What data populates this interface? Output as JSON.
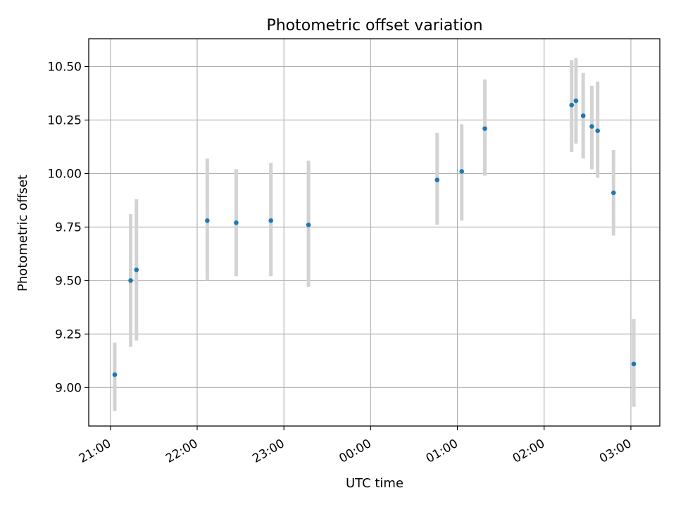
{
  "chart_data": {
    "type": "scatter",
    "title": "Photometric offset variation",
    "xlabel": "UTC time",
    "ylabel": "Photometric offset",
    "x_is_time": true,
    "x_start": "21:00",
    "xlim": [
      "20:45",
      "03:20"
    ],
    "ylim": [
      8.82,
      10.63
    ],
    "xticks": [
      "21:00",
      "22:00",
      "23:00",
      "00:00",
      "01:00",
      "02:00",
      "03:00"
    ],
    "yticks": [
      "9.00",
      "9.25",
      "9.50",
      "9.75",
      "10.00",
      "10.25",
      "10.50"
    ],
    "grid": true,
    "series": [
      {
        "marker_color": "#1f77b4",
        "errorbar_color": "#d3d3d3",
        "points": [
          {
            "x": "21:03",
            "y": 9.06,
            "low": 8.89,
            "high": 9.21
          },
          {
            "x": "21:14",
            "y": 9.5,
            "low": 9.19,
            "high": 9.81
          },
          {
            "x": "21:18",
            "y": 9.55,
            "low": 9.22,
            "high": 9.88
          },
          {
            "x": "22:07",
            "y": 9.78,
            "low": 9.5,
            "high": 10.07
          },
          {
            "x": "22:27",
            "y": 9.77,
            "low": 9.52,
            "high": 10.02
          },
          {
            "x": "22:51",
            "y": 9.78,
            "low": 9.52,
            "high": 10.05
          },
          {
            "x": "23:17",
            "y": 9.76,
            "low": 9.47,
            "high": 10.06
          },
          {
            "x": "00:46",
            "y": 9.97,
            "low": 9.76,
            "high": 10.19
          },
          {
            "x": "01:03",
            "y": 10.01,
            "low": 9.78,
            "high": 10.23
          },
          {
            "x": "01:19",
            "y": 10.21,
            "low": 9.99,
            "high": 10.44
          },
          {
            "x": "02:19",
            "y": 10.32,
            "low": 10.1,
            "high": 10.53
          },
          {
            "x": "02:22",
            "y": 10.34,
            "low": 10.14,
            "high": 10.54
          },
          {
            "x": "02:27",
            "y": 10.27,
            "low": 10.07,
            "high": 10.47
          },
          {
            "x": "02:33",
            "y": 10.22,
            "low": 10.02,
            "high": 10.41
          },
          {
            "x": "02:37",
            "y": 10.2,
            "low": 9.98,
            "high": 10.43
          },
          {
            "x": "02:48",
            "y": 9.91,
            "low": 9.71,
            "high": 10.11
          },
          {
            "x": "03:02",
            "y": 9.11,
            "low": 8.91,
            "high": 9.32
          }
        ]
      }
    ]
  }
}
